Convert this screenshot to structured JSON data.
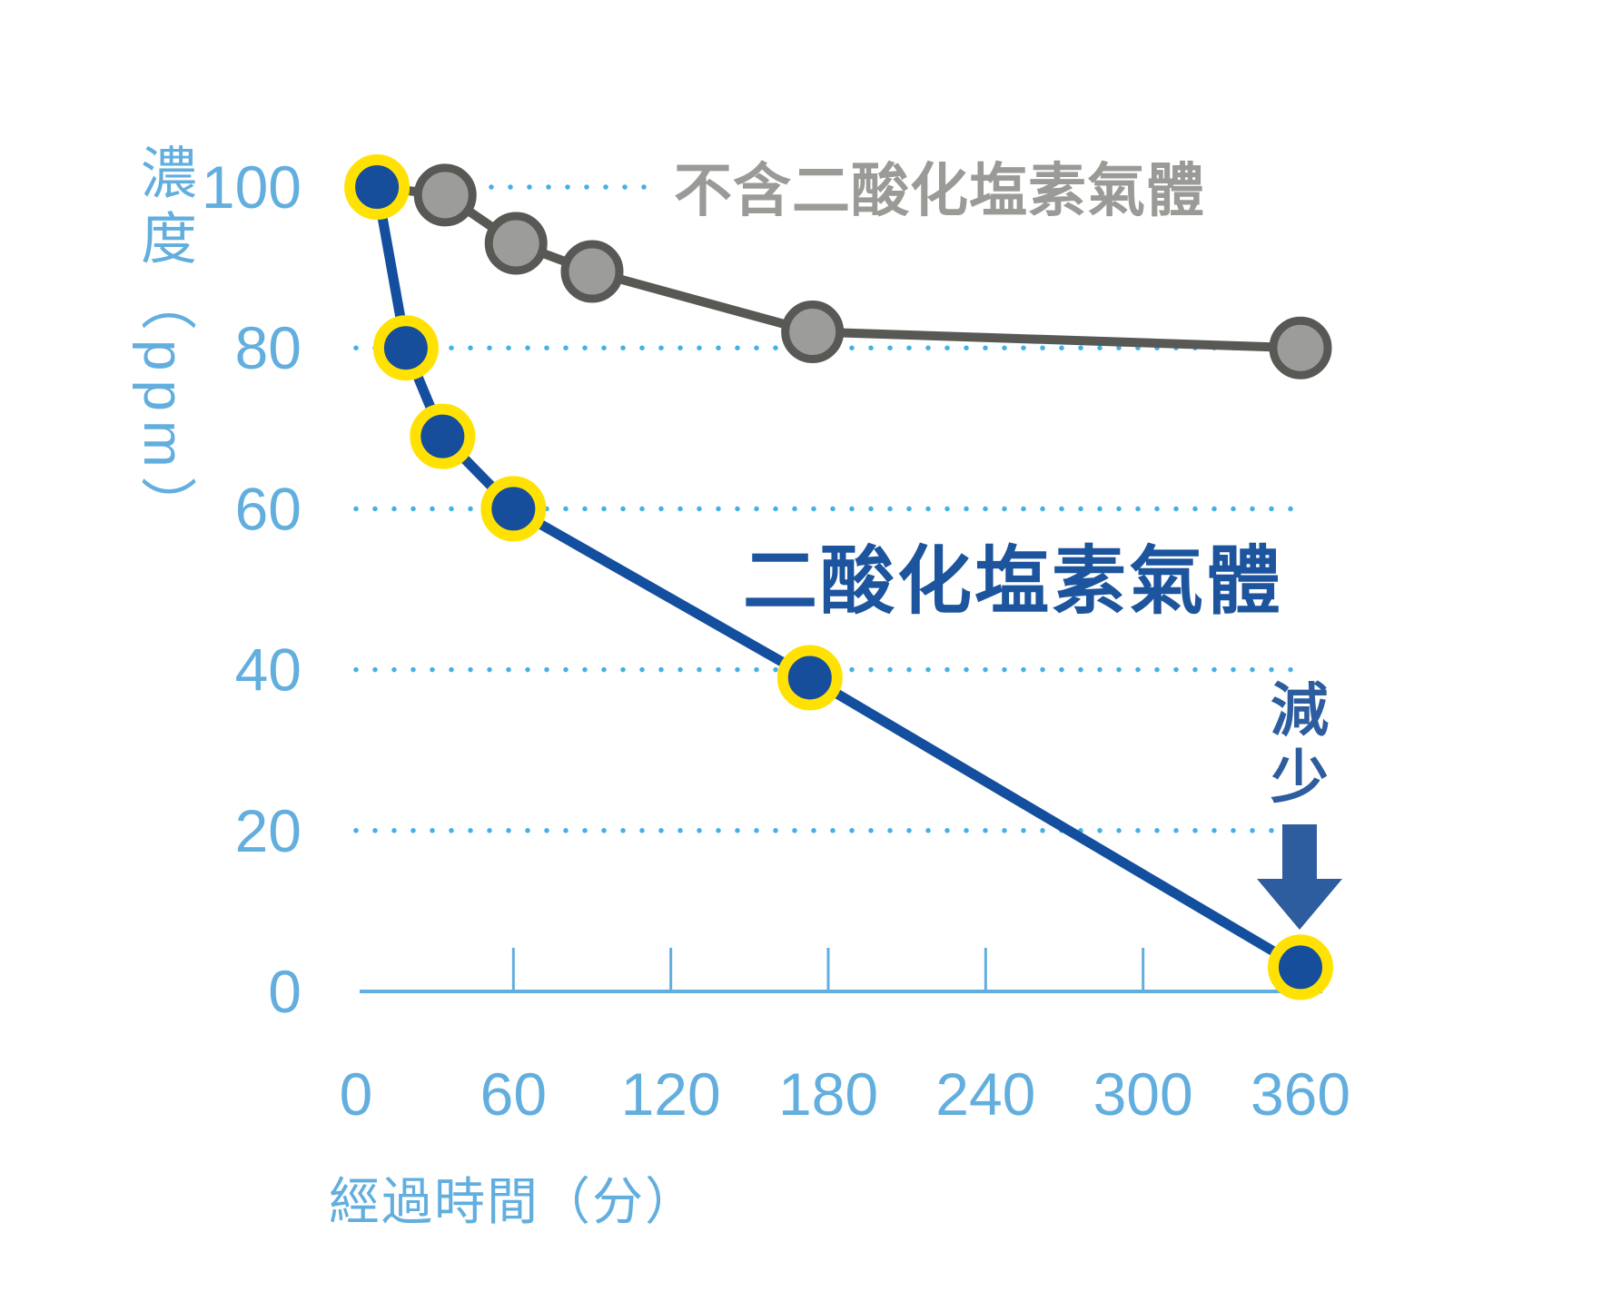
{
  "chart_data": {
    "type": "line",
    "title": "",
    "xlabel": "經過時間（分）",
    "ylabel": "濃度（ppm）",
    "xlim": [
      0,
      360
    ],
    "ylim": [
      0,
      100
    ],
    "x_ticks": [
      0,
      60,
      120,
      180,
      240,
      300,
      360
    ],
    "y_ticks": [
      100,
      80,
      60,
      40,
      20,
      0
    ],
    "grid": "dotted horizontal lines at y=20,40,60,80,100",
    "legend_position": "labels drawn next to each line",
    "series": [
      {
        "name": "不含二酸化塩素氣體",
        "label_color": "#9a9a97",
        "line_color": "#585855",
        "marker_fill": "#9c9c9a",
        "marker_ring": "#585855",
        "ring_w": 9,
        "r": 30,
        "line_w": 10,
        "skip_first_marker": true,
        "points": [
          [
            8,
            100
          ],
          [
            34,
            99
          ],
          [
            61,
            93
          ],
          [
            90,
            89.5
          ],
          [
            174,
            82
          ],
          [
            360,
            80
          ]
        ]
      },
      {
        "name": "二酸化塩素氣體",
        "label_color": "#1c549d",
        "line_color": "#134f9e",
        "marker_fill": "#164e9c",
        "marker_ring": "#ffe204",
        "ring_w": 12,
        "r": 30,
        "line_w": 11,
        "skip_first_marker": false,
        "points": [
          [
            8,
            100
          ],
          [
            19,
            80
          ],
          [
            33,
            69
          ],
          [
            60,
            60
          ],
          [
            173,
            39
          ],
          [
            360,
            3
          ]
        ]
      }
    ],
    "annotations": [
      {
        "text": "減少",
        "type": "decrease-down-arrow",
        "x": 360,
        "near_y": 10
      }
    ],
    "colors": {
      "axis": "#62aede",
      "grid_dot": "#45b0e6",
      "arrow": "#2d5d9e",
      "background": "#ffffff"
    }
  }
}
